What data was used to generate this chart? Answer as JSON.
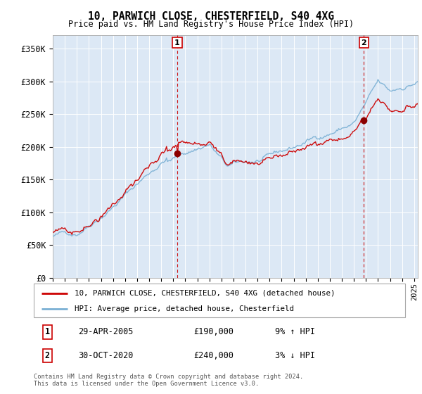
{
  "title1": "10, PARWICH CLOSE, CHESTERFIELD, S40 4XG",
  "title2": "Price paid vs. HM Land Registry's House Price Index (HPI)",
  "ylabel_ticks": [
    "£0",
    "£50K",
    "£100K",
    "£150K",
    "£200K",
    "£250K",
    "£300K",
    "£350K"
  ],
  "ylim": [
    0,
    370000
  ],
  "xlim_start": 1995.0,
  "xlim_end": 2025.3,
  "bg_color": "#dce8f5",
  "grid_color": "#ffffff",
  "sale1_x": 2005.33,
  "sale1_y": 190000,
  "sale2_x": 2020.83,
  "sale2_y": 240000,
  "legend_line1": "10, PARWICH CLOSE, CHESTERFIELD, S40 4XG (detached house)",
  "legend_line2": "HPI: Average price, detached house, Chesterfield",
  "annot1_label": "1",
  "annot1_date": "29-APR-2005",
  "annot1_price": "£190,000",
  "annot1_hpi": "9% ↑ HPI",
  "annot2_label": "2",
  "annot2_date": "30-OCT-2020",
  "annot2_price": "£240,000",
  "annot2_hpi": "3% ↓ HPI",
  "footer": "Contains HM Land Registry data © Crown copyright and database right 2024.\nThis data is licensed under the Open Government Licence v3.0.",
  "hpi_color": "#7ab0d4",
  "price_color": "#cc0000",
  "marker_color": "#8b0000"
}
